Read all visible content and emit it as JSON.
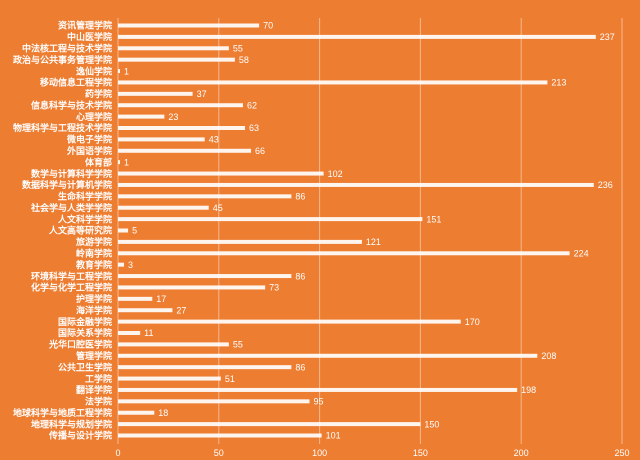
{
  "chart_data": {
    "type": "bar",
    "orientation": "horizontal",
    "title": "",
    "xlabel": "",
    "ylabel": "",
    "xlim": [
      0,
      250
    ],
    "xticks": [
      0,
      50,
      100,
      150,
      200,
      250
    ],
    "grid": true,
    "bar_color": "#FFFFFF",
    "background_color": "#ED7D31",
    "categories": [
      "资讯管理学院",
      "中山医学院",
      "中法核工程与技术学院",
      "政治与公共事务管理学院",
      "逸仙学院",
      "移动信息工程学院",
      "药学院",
      "信息科学与技术学院",
      "心理学院",
      "物理科学与工程技术学院",
      "微电子学院",
      "外国语学院",
      "体育部",
      "数学与计算科学学院",
      "数据科学与计算机学院",
      "生命科学学院",
      "社会学与人类学学院",
      "人文科学学院",
      "人文高等研究院",
      "旅游学院",
      "岭南学院",
      "教育学院",
      "环境科学与工程学院",
      "化学与化学工程学院",
      "护理学院",
      "海洋学院",
      "国际金融学院",
      "国际关系学院",
      "光华口腔医学院",
      "管理学院",
      "公共卫生学院",
      "工学院",
      "翻译学院",
      "法学院",
      "地球科学与地质工程学院",
      "地理科学与规划学院",
      "传播与设计学院"
    ],
    "values": [
      70,
      237,
      55,
      58,
      1,
      213,
      37,
      62,
      23,
      63,
      43,
      66,
      1,
      102,
      236,
      86,
      45,
      151,
      5,
      121,
      224,
      3,
      86,
      73,
      17,
      27,
      170,
      11,
      55,
      208,
      86,
      51,
      198,
      95,
      18,
      150,
      101
    ]
  }
}
